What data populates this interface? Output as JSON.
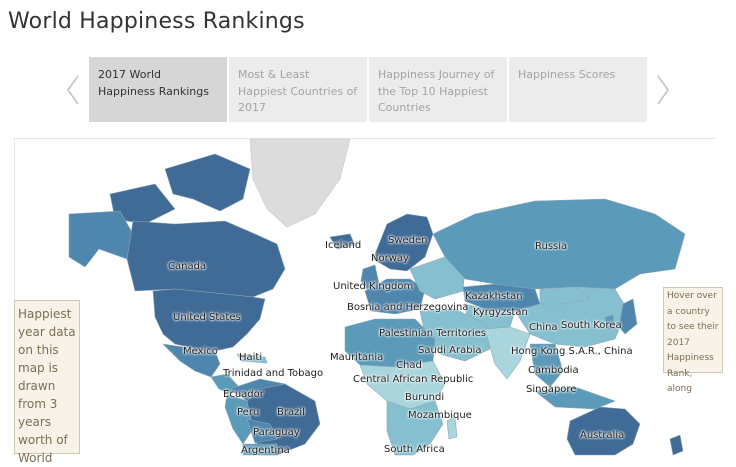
{
  "title": "World Happiness Rankings",
  "story_points": [
    {
      "label": "2017 World Happiness Rankings",
      "active": true
    },
    {
      "label": "Most & Least Happiest Countries of 2017",
      "active": false
    },
    {
      "label": "Happiness Journey of the Top 10 Happiest Countries",
      "active": false
    },
    {
      "label": "Happiness Scores",
      "active": false
    }
  ],
  "nav": {
    "prev_icon": "chevron-left-icon",
    "next_icon": "chevron-right-icon"
  },
  "notes": {
    "left": "Happiest year data on this map is drawn from 3 years worth of World",
    "right": "Hover over a country to see their 2017 Happiness Rank, along"
  },
  "map": {
    "labels": {
      "canada": "Canada",
      "united_states": "United States",
      "mexico": "Mexico",
      "haiti": "Haiti",
      "trinidad": "Trinidad and Tobago",
      "ecuador": "Ecuador",
      "peru": "Peru",
      "brazil": "Brazil",
      "paraguay": "Paraguay",
      "argentina": "Argentina",
      "iceland": "Iceland",
      "sweden": "Sweden",
      "norway": "Norway",
      "united_kingdom": "United Kingdom",
      "bosnia": "Bosnia and Herzegovina",
      "kazakhstan": "Kazakhstan",
      "kyrgyzstan": "Kyrgyzstan",
      "russia": "Russia",
      "china": "China",
      "south_korea": "South Korea",
      "hong_kong": "Hong Kong S.A.R., China",
      "palestinian": "Palestinian Territories",
      "saudi_arabia": "Saudi Arabia",
      "mauritania": "Mauritania",
      "chad": "Chad",
      "central_african": "Central African Republic",
      "cambodia": "Cambodia",
      "singapore": "Singapore",
      "burundi": "Burundi",
      "mozambique": "Mozambique",
      "south_africa": "South Africa",
      "australia": "Australia"
    },
    "colors": {
      "high": "#3f6b96",
      "mid_high": "#4f86ad",
      "mid": "#5b9ab9",
      "mid_low": "#86bfcf",
      "low": "#a9d6dc",
      "no_data": "#dcdcdc",
      "border": "#8fa8b8"
    }
  }
}
